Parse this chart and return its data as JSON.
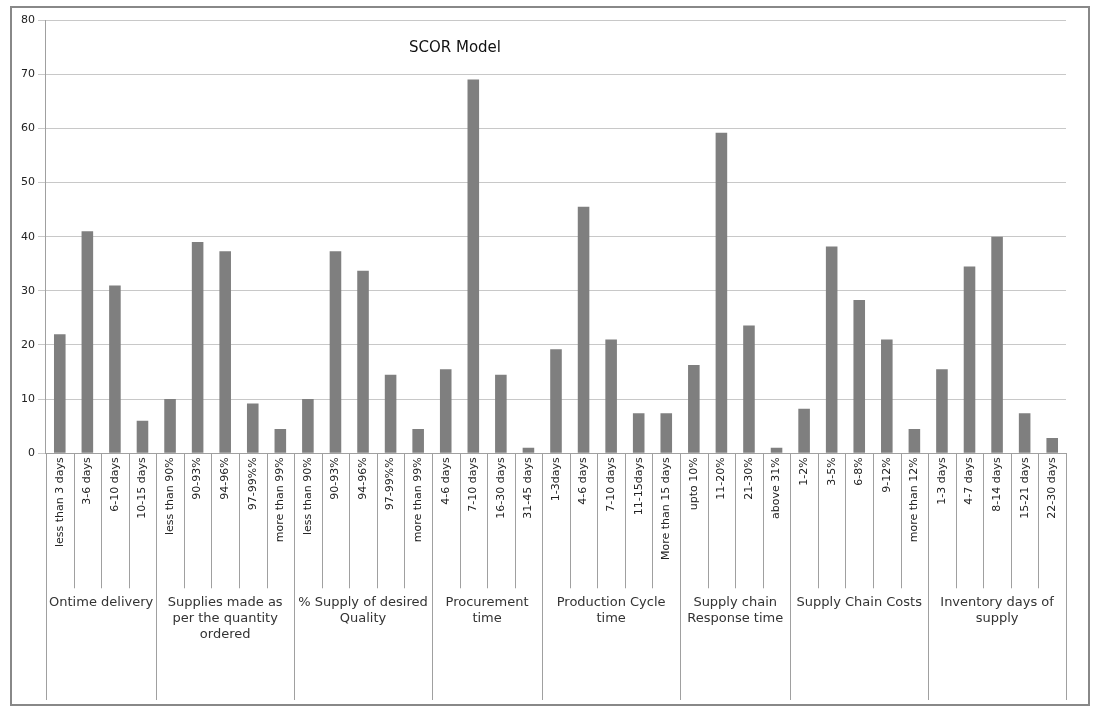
{
  "chart_data": {
    "type": "bar",
    "title": "SCOR Model",
    "categories": [
      "less than 3 days",
      "3-6 days",
      "6-10 days",
      "10-15 days",
      "less than 90%",
      "90-93%",
      "94-96%",
      "97-99%%",
      "more than 99%",
      "less than 90%",
      "90-93%",
      "94-96%",
      "97-99%%",
      "more than 99%",
      "4-6 days",
      "7-10 days",
      "16-30 days",
      "31-45 days",
      "1-3days",
      "4-6 days",
      "7-10 days",
      "11-15days",
      "More than 15 days",
      "upto 10%",
      "11-20%",
      "21-30%",
      "above 31%",
      "1-2%",
      "3-5%",
      "6-8%",
      "9-12%",
      "more than 12%",
      "1-3 days",
      "4-7 days",
      "8-14 days",
      "15-21 days",
      "22-30 days"
    ],
    "values": [
      22,
      41,
      31,
      6,
      10,
      39,
      37.3,
      9.2,
      4.5,
      10,
      37.3,
      33.7,
      14.5,
      4.5,
      15.5,
      69,
      14.5,
      1,
      19.2,
      45.5,
      21,
      7.4,
      7.4,
      16.3,
      59.2,
      23.6,
      1,
      8.2,
      38.2,
      28.3,
      21,
      4.5,
      15.5,
      34.5,
      40,
      7.4,
      2.8
    ],
    "color": "#7f7f7f",
    "ylim": [
      0,
      80
    ],
    "yticks": [
      0,
      10,
      20,
      30,
      40,
      50,
      60,
      70,
      80
    ],
    "grid": "y",
    "legend": false,
    "annotations": [
      "Ontime delivery",
      "Supplies made as per the quantity ordered",
      "% Supply of desired Quality",
      "Procurement time",
      "Production Cycle time",
      "Supply chain Response time",
      "Supply Chain Costs",
      "Inventory days of supply"
    ]
  }
}
